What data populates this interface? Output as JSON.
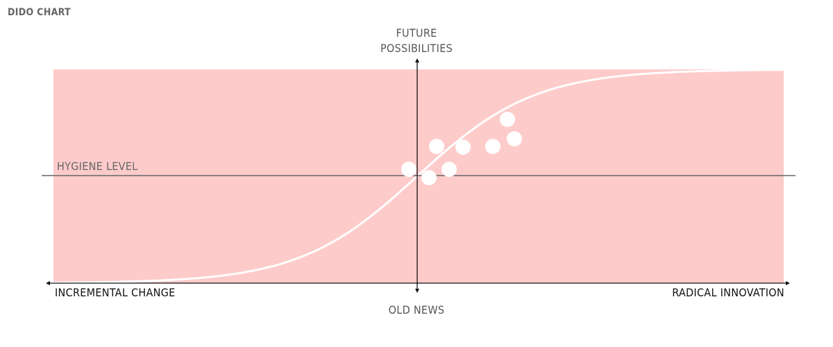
{
  "title": "DIDO CHART",
  "axes": {
    "top": [
      "FUTURE",
      "POSSIBILITIES"
    ],
    "bottom": "OLD NEWS",
    "left": "INCREMENTAL CHANGE",
    "right": "RADICAL INNOVATION"
  },
  "threshold_label": "HYGIENE LEVEL",
  "colors": {
    "background_zone": "#fecbcb",
    "curve": "#ffffff",
    "points": "#ffffff",
    "axis": "#111111",
    "threshold": "#666666"
  }
}
